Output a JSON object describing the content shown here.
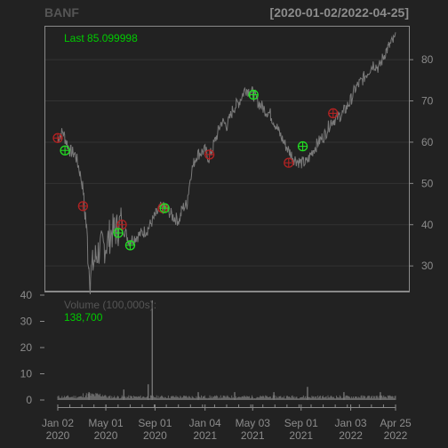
{
  "header": {
    "symbol": "BANF",
    "range": "[2020-01-02/2022-04-25]"
  },
  "price_panel": {
    "last_label": "Last 85.099998"
  },
  "volume_panel": {
    "title": "Volume (100,000s):",
    "value": "138,700"
  },
  "colors": {
    "background": "#222222",
    "frame": "#8a8a8a",
    "price_line": "#7a7a7a",
    "grid": "#333333",
    "text": "#8c8c8c",
    "accent_green": "#00cc00",
    "marker_red": "#b22222",
    "marker_green": "#22dd22"
  },
  "chart_data": [
    {
      "type": "line",
      "panel": "price",
      "x": [
        "2020-01-02",
        "2020-01-15",
        "2020-02-01",
        "2020-02-15",
        "2020-02-24",
        "2020-03-05",
        "2020-03-12",
        "2020-03-16",
        "2020-03-23",
        "2020-04-01",
        "2020-04-15",
        "2020-05-01",
        "2020-05-15",
        "2020-06-01",
        "2020-06-08",
        "2020-06-15",
        "2020-06-29",
        "2020-07-15",
        "2020-08-01",
        "2020-08-15",
        "2020-09-01",
        "2020-09-15",
        "2020-10-01",
        "2020-10-15",
        "2020-11-01",
        "2020-11-09",
        "2020-11-20",
        "2020-12-01",
        "2020-12-15",
        "2021-01-04",
        "2021-01-15",
        "2021-02-01",
        "2021-02-15",
        "2021-03-01",
        "2021-03-15",
        "2021-04-01",
        "2021-04-15",
        "2021-05-03",
        "2021-05-15",
        "2021-06-01",
        "2021-06-15",
        "2021-07-01",
        "2021-07-15",
        "2021-08-01",
        "2021-08-15",
        "2021-09-01",
        "2021-09-15",
        "2021-10-01",
        "2021-10-15",
        "2021-11-01",
        "2021-11-15",
        "2021-12-01",
        "2021-12-15",
        "2022-01-03",
        "2022-01-15",
        "2022-02-01",
        "2022-02-15",
        "2022-03-01",
        "2022-03-15",
        "2022-04-01",
        "2022-04-15",
        "2022-04-25"
      ],
      "y": [
        61,
        62.5,
        58,
        57,
        54,
        49,
        42,
        36,
        27,
        31,
        34,
        35,
        38,
        39,
        41,
        39,
        36,
        37,
        38,
        39,
        42,
        44,
        44,
        42,
        41,
        44,
        45,
        53,
        57,
        58,
        56,
        61,
        65,
        64,
        68,
        70,
        73,
        72,
        70,
        68,
        67,
        64,
        61,
        58,
        56,
        55,
        55,
        58,
        60,
        62,
        65,
        66,
        67,
        70,
        73,
        75,
        77,
        79,
        78,
        82,
        84,
        85.1
      ],
      "ylim": [
        24,
        88
      ],
      "yticks": [
        30,
        40,
        50,
        60,
        70,
        80
      ]
    },
    {
      "type": "scatter",
      "panel": "price",
      "series": [
        {
          "color": "red",
          "x": [
            "2020-01-02",
            "2020-03-05",
            "2020-06-10",
            "2020-09-20",
            "2021-01-15",
            "2021-08-01",
            "2021-11-20"
          ],
          "y": [
            61,
            44.5,
            40,
            44,
            57,
            55,
            67
          ]
        },
        {
          "color": "green",
          "x": [
            "2020-01-20",
            "2020-06-01",
            "2020-07-01",
            "2020-09-25",
            "2021-05-05",
            "2021-09-05"
          ],
          "y": [
            58,
            38,
            35,
            44,
            71.5,
            59
          ]
        }
      ]
    },
    {
      "type": "bar",
      "panel": "volume",
      "ylim": [
        0,
        40
      ],
      "yticks": [
        0,
        10,
        20,
        30,
        40
      ],
      "note_values_in_100000s": true,
      "spikes": [
        {
          "x": "2020-03-20",
          "y": 3
        },
        {
          "x": "2020-06-15",
          "y": 4
        },
        {
          "x": "2020-08-15",
          "y": 6
        },
        {
          "x": "2020-08-25",
          "y": 38
        },
        {
          "x": "2020-12-18",
          "y": 3
        },
        {
          "x": "2021-03-19",
          "y": 3
        },
        {
          "x": "2021-06-25",
          "y": 3
        },
        {
          "x": "2021-09-17",
          "y": 5
        },
        {
          "x": "2021-12-17",
          "y": 3
        },
        {
          "x": "2022-03-18",
          "y": 3
        }
      ],
      "baseline": 1.4
    }
  ],
  "x_axis": {
    "ticks": [
      {
        "date": "2020-01-02",
        "line1": "Jan 02",
        "line2": "2020"
      },
      {
        "date": "2020-05-01",
        "line1": "May 01",
        "line2": "2020"
      },
      {
        "date": "2020-09-01",
        "line1": "Sep 01",
        "line2": "2020"
      },
      {
        "date": "2021-01-04",
        "line1": "Jan 04",
        "line2": "2021"
      },
      {
        "date": "2021-05-03",
        "line1": "May 03",
        "line2": "2021"
      },
      {
        "date": "2021-09-01",
        "line1": "Sep 01",
        "line2": "2021"
      },
      {
        "date": "2022-01-03",
        "line1": "Jan 03",
        "line2": "2022"
      },
      {
        "date": "2022-04-25",
        "line1": "Apr 25",
        "line2": "2022"
      }
    ]
  }
}
